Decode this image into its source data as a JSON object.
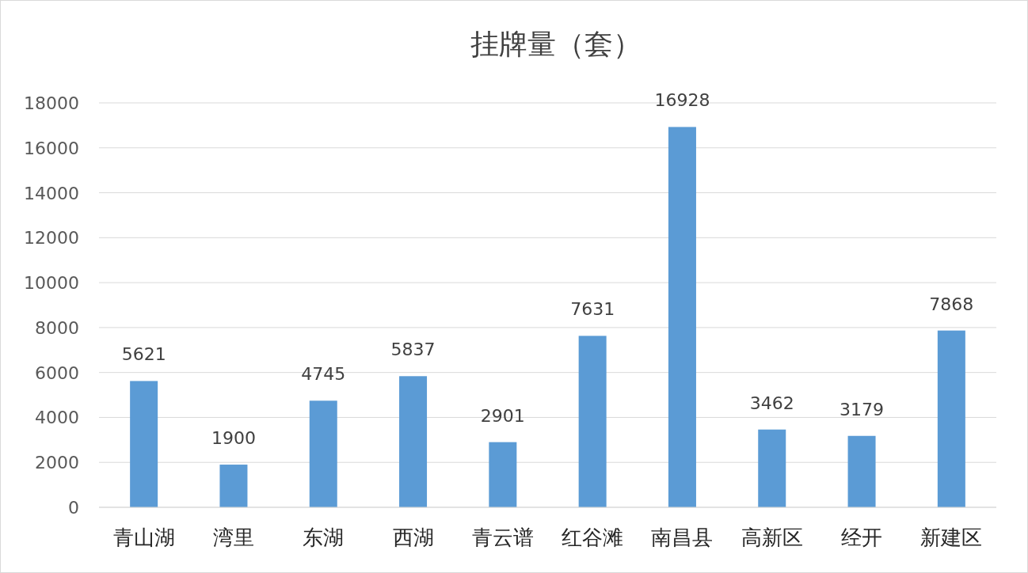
{
  "chart_data": {
    "type": "bar",
    "title": "挂牌量（套）",
    "categories": [
      "青山湖",
      "湾里",
      "东湖",
      "西湖",
      "青云谱",
      "红谷滩",
      "南昌县",
      "高新区",
      "经开",
      "新建区"
    ],
    "values": [
      5621,
      1900,
      4745,
      5837,
      2901,
      7631,
      16928,
      3462,
      3179,
      7868
    ],
    "color": "#5b9bd5",
    "ylim": [
      0,
      18000
    ],
    "yticks": [
      0,
      2000,
      4000,
      6000,
      8000,
      10000,
      12000,
      14000,
      16000,
      18000
    ],
    "grid": "y",
    "data_labels": true
  }
}
